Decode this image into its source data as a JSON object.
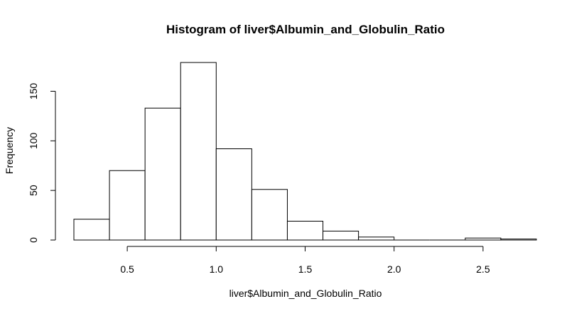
{
  "chart_data": {
    "type": "bar",
    "title": "Histogram of liver$Albumin_and_Globulin_Ratio",
    "xlabel": "liver$Albumin_and_Globulin_Ratio",
    "ylabel": "Frequency",
    "bins": [
      {
        "start": 0.2,
        "end": 0.4,
        "count": 21
      },
      {
        "start": 0.4,
        "end": 0.6,
        "count": 70
      },
      {
        "start": 0.6,
        "end": 0.8,
        "count": 133
      },
      {
        "start": 0.8,
        "end": 1.0,
        "count": 179
      },
      {
        "start": 1.0,
        "end": 1.2,
        "count": 92
      },
      {
        "start": 1.2,
        "end": 1.4,
        "count": 51
      },
      {
        "start": 1.4,
        "end": 1.6,
        "count": 19
      },
      {
        "start": 1.6,
        "end": 1.8,
        "count": 9
      },
      {
        "start": 1.8,
        "end": 2.0,
        "count": 3
      },
      {
        "start": 2.0,
        "end": 2.2,
        "count": 0
      },
      {
        "start": 2.2,
        "end": 2.4,
        "count": 0
      },
      {
        "start": 2.4,
        "end": 2.6,
        "count": 2
      },
      {
        "start": 2.6,
        "end": 2.8,
        "count": 1
      }
    ],
    "x_ticks": [
      0.5,
      1.0,
      1.5,
      2.0,
      2.5
    ],
    "x_tick_labels": [
      "0.5",
      "1.0",
      "1.5",
      "2.0",
      "2.5"
    ],
    "y_ticks": [
      0,
      50,
      100,
      150
    ],
    "y_tick_labels": [
      "0",
      "50",
      "100",
      "150"
    ],
    "xlim": [
      0.2,
      2.8
    ],
    "ylim": [
      0,
      179
    ],
    "grid": false,
    "legend": "none",
    "colors": {
      "bar_fill": "#ffffff",
      "bar_stroke": "#000000",
      "axis": "#000000"
    }
  }
}
